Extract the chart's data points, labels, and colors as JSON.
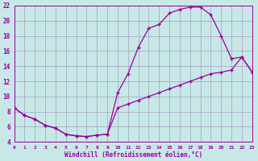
{
  "bg_color": "#c8e8e8",
  "grid_color": "#a0a0c0",
  "line_color": "#990099",
  "xlim": [
    0,
    23
  ],
  "ylim": [
    4,
    22
  ],
  "xticks": [
    0,
    1,
    2,
    3,
    4,
    5,
    6,
    7,
    8,
    9,
    10,
    11,
    12,
    13,
    14,
    15,
    16,
    17,
    18,
    19,
    20,
    21,
    22,
    23
  ],
  "yticks": [
    4,
    6,
    8,
    10,
    12,
    14,
    16,
    18,
    20,
    22
  ],
  "curve1_x": [
    0,
    1,
    2,
    3,
    4,
    5,
    6,
    7,
    8,
    9,
    10,
    11,
    12,
    13,
    14,
    15,
    16,
    17,
    18,
    19,
    20,
    21,
    22,
    23
  ],
  "curve1_y": [
    8.5,
    7.5,
    7.0,
    6.2,
    5.8,
    5.0,
    4.8,
    4.7,
    4.9,
    5.0,
    10.5,
    13.0,
    16.5,
    19.0,
    19.5,
    21.0,
    21.5,
    21.8,
    21.8,
    20.8,
    18.0,
    15.0,
    15.2,
    13.2
  ],
  "curve2_x": [
    0,
    1,
    2,
    3,
    4,
    5,
    6,
    7,
    8,
    9,
    10,
    11,
    12,
    13,
    14,
    15,
    16,
    17,
    18,
    19,
    20,
    21,
    22,
    23
  ],
  "curve2_y": [
    8.5,
    7.5,
    7.0,
    6.2,
    5.8,
    5.0,
    4.8,
    4.7,
    4.9,
    5.0,
    8.5,
    9.0,
    9.5,
    10.0,
    10.5,
    11.0,
    11.5,
    12.0,
    12.5,
    13.0,
    13.2,
    13.5,
    15.2,
    13.2
  ],
  "xlabel": "Windchill (Refroidissement éolien,°C)"
}
